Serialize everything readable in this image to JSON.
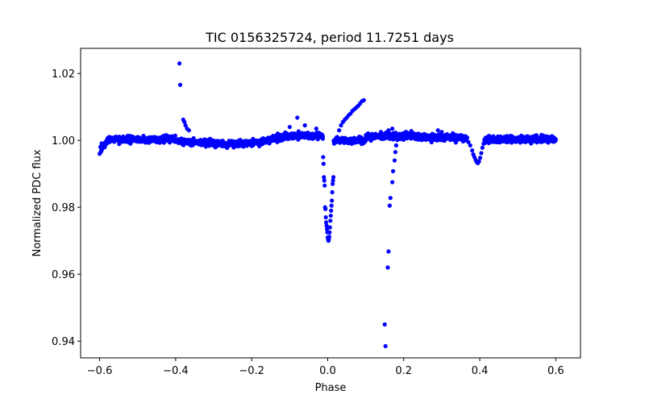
{
  "chart_data": {
    "type": "scatter",
    "title": "TIC 0156325724, period 11.7251 days",
    "xlabel": "Phase",
    "ylabel": "Normalized PDC flux",
    "xlim": [
      -0.65,
      0.665
    ],
    "ylim": [
      0.935,
      1.0275
    ],
    "xticks": [
      -0.6,
      -0.4,
      -0.2,
      0.0,
      0.2,
      0.4,
      0.6
    ],
    "xtick_labels": [
      "−0.6",
      "−0.4",
      "−0.2",
      "0.0",
      "0.2",
      "0.4",
      "0.6"
    ],
    "yticks": [
      0.94,
      0.96,
      0.98,
      1.0,
      1.02
    ],
    "ytick_labels": [
      "0.94",
      "0.96",
      "0.98",
      "1.00",
      "1.02"
    ],
    "grid": false,
    "marker_color": "#0000ff",
    "series": [
      {
        "name": "PDC flux",
        "points": [
          [
            -0.6,
            0.996
          ],
          [
            -0.597,
            0.9965
          ],
          [
            -0.594,
            0.9972
          ],
          [
            -0.59,
            0.9985
          ],
          [
            -0.585,
            0.9995
          ],
          [
            -0.39,
            1.023
          ],
          [
            -0.388,
            1.0166
          ],
          [
            -0.38,
            1.0062
          ],
          [
            -0.377,
            1.0055
          ],
          [
            -0.374,
            1.0045
          ],
          [
            -0.37,
            1.0035
          ],
          [
            -0.365,
            1.003
          ],
          [
            -0.08,
            1.0068
          ],
          [
            -0.1,
            1.004
          ],
          [
            -0.06,
            1.0045
          ],
          [
            -0.03,
            1.0035
          ],
          [
            -0.012,
            0.995
          ],
          [
            -0.011,
            0.993
          ],
          [
            -0.01,
            0.989
          ],
          [
            -0.009,
            0.988
          ],
          [
            -0.008,
            0.9865
          ],
          [
            -0.007,
            0.98
          ],
          [
            -0.006,
            0.9795
          ],
          [
            -0.005,
            0.977
          ],
          [
            -0.004,
            0.9755
          ],
          [
            -0.003,
            0.9745
          ],
          [
            -0.002,
            0.9735
          ],
          [
            -0.001,
            0.9725
          ],
          [
            0.0,
            0.971
          ],
          [
            0.001,
            0.9705
          ],
          [
            0.002,
            0.97
          ],
          [
            0.003,
            0.9705
          ],
          [
            0.004,
            0.9712
          ],
          [
            0.005,
            0.9725
          ],
          [
            0.006,
            0.974
          ],
          [
            0.007,
            0.976
          ],
          [
            0.008,
            0.9775
          ],
          [
            0.009,
            0.979
          ],
          [
            0.01,
            0.9805
          ],
          [
            0.011,
            0.982
          ],
          [
            0.012,
            0.9845
          ],
          [
            0.013,
            0.987
          ],
          [
            0.014,
            0.988
          ],
          [
            0.015,
            0.989
          ],
          [
            0.025,
            1.001
          ],
          [
            0.03,
            1.003
          ],
          [
            0.035,
            1.0045
          ],
          [
            0.04,
            1.0055
          ],
          [
            0.045,
            1.0062
          ],
          [
            0.05,
            1.0068
          ],
          [
            0.055,
            1.0075
          ],
          [
            0.06,
            1.008
          ],
          [
            0.065,
            1.0088
          ],
          [
            0.07,
            1.0093
          ],
          [
            0.075,
            1.0098
          ],
          [
            0.08,
            1.0103
          ],
          [
            0.085,
            1.011
          ],
          [
            0.09,
            1.0117
          ],
          [
            0.095,
            1.012
          ],
          [
            0.15,
            0.945
          ],
          [
            0.152,
            0.9385
          ],
          [
            0.158,
            0.962
          ],
          [
            0.16,
            0.9668
          ],
          [
            0.163,
            0.9805
          ],
          [
            0.165,
            0.9828
          ],
          [
            0.17,
            0.9875
          ],
          [
            0.172,
            0.9908
          ],
          [
            0.176,
            0.994
          ],
          [
            0.178,
            0.9965
          ],
          [
            0.18,
            0.9985
          ],
          [
            0.17,
            1.0035
          ],
          [
            0.16,
            1.003
          ],
          [
            0.14,
            1.0025
          ],
          [
            0.22,
            1.0028
          ],
          [
            0.29,
            1.003
          ],
          [
            0.3,
            1.0025
          ],
          [
            0.37,
            0.9995
          ],
          [
            0.375,
            0.9985
          ],
          [
            0.38,
            0.997
          ],
          [
            0.383,
            0.9958
          ],
          [
            0.386,
            0.995
          ],
          [
            0.389,
            0.9942
          ],
          [
            0.392,
            0.9935
          ],
          [
            0.395,
            0.9932
          ],
          [
            0.398,
            0.9937
          ],
          [
            0.401,
            0.9948
          ],
          [
            0.404,
            0.9962
          ],
          [
            0.407,
            0.9978
          ],
          [
            0.41,
            0.999
          ]
        ]
      }
    ]
  }
}
